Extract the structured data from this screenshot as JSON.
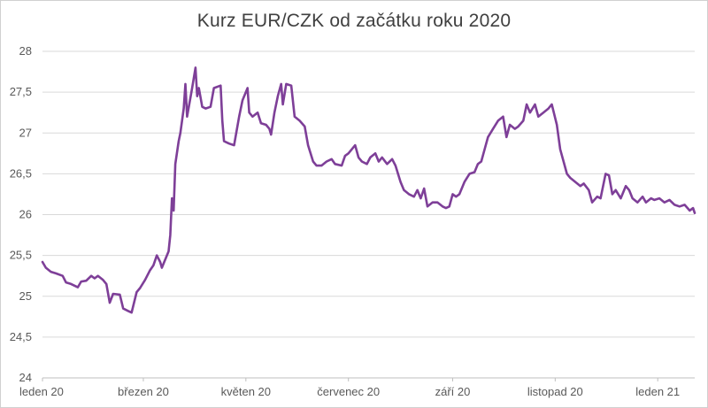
{
  "chart_data": {
    "type": "line",
    "title": "Kurz EUR/CZK od začátku roku 2020",
    "xlabel": "",
    "ylabel": "",
    "ylim": [
      24,
      28
    ],
    "yticks": [
      "24",
      "24,5",
      "25",
      "25,5",
      "26",
      "26,5",
      "27",
      "27,5",
      "28"
    ],
    "xticks": [
      {
        "label": "leden 20",
        "date": "2020-01-01"
      },
      {
        "label": "březen 20",
        "date": "2020-03-01"
      },
      {
        "label": "květen 20",
        "date": "2020-05-01"
      },
      {
        "label": "červenec 20",
        "date": "2020-07-01"
      },
      {
        "label": "září 20",
        "date": "2020-09-01"
      },
      {
        "label": "listopad 20",
        "date": "2020-11-01"
      },
      {
        "label": "leden 21",
        "date": "2021-01-01"
      }
    ],
    "x_range": [
      "2020-01-01",
      "2021-01-23"
    ],
    "grid": "horizontal",
    "line_color": "#7e3f98",
    "series": [
      {
        "points": [
          [
            "2020-01-01",
            25.42
          ],
          [
            "2020-01-03",
            25.35
          ],
          [
            "2020-01-06",
            25.3
          ],
          [
            "2020-01-09",
            25.28
          ],
          [
            "2020-01-13",
            25.25
          ],
          [
            "2020-01-15",
            25.17
          ],
          [
            "2020-01-18",
            25.15
          ],
          [
            "2020-01-22",
            25.11
          ],
          [
            "2020-01-24",
            25.18
          ],
          [
            "2020-01-27",
            25.19
          ],
          [
            "2020-01-30",
            25.25
          ],
          [
            "2020-02-01",
            25.22
          ],
          [
            "2020-02-03",
            25.25
          ],
          [
            "2020-02-06",
            25.2
          ],
          [
            "2020-02-08",
            25.15
          ],
          [
            "2020-02-10",
            24.92
          ],
          [
            "2020-02-12",
            25.03
          ],
          [
            "2020-02-16",
            25.02
          ],
          [
            "2020-02-18",
            24.85
          ],
          [
            "2020-02-21",
            24.82
          ],
          [
            "2020-02-23",
            24.8
          ],
          [
            "2020-02-26",
            25.05
          ],
          [
            "2020-02-28",
            25.1
          ],
          [
            "2020-03-02",
            25.2
          ],
          [
            "2020-03-05",
            25.32
          ],
          [
            "2020-03-07",
            25.38
          ],
          [
            "2020-03-09",
            25.5
          ],
          [
            "2020-03-11",
            25.42
          ],
          [
            "2020-03-12",
            25.35
          ],
          [
            "2020-03-14",
            25.45
          ],
          [
            "2020-03-16",
            25.55
          ],
          [
            "2020-03-17",
            25.75
          ],
          [
            "2020-03-18",
            26.2
          ],
          [
            "2020-03-19",
            26.05
          ],
          [
            "2020-03-20",
            26.62
          ],
          [
            "2020-03-22",
            26.9
          ],
          [
            "2020-03-23",
            27.0
          ],
          [
            "2020-03-25",
            27.3
          ],
          [
            "2020-03-26",
            27.6
          ],
          [
            "2020-03-27",
            27.2
          ],
          [
            "2020-03-30",
            27.55
          ],
          [
            "2020-04-01",
            27.8
          ],
          [
            "2020-04-02",
            27.45
          ],
          [
            "2020-04-03",
            27.55
          ],
          [
            "2020-04-05",
            27.32
          ],
          [
            "2020-04-07",
            27.3
          ],
          [
            "2020-04-10",
            27.32
          ],
          [
            "2020-04-12",
            27.55
          ],
          [
            "2020-04-16",
            27.58
          ],
          [
            "2020-04-17",
            27.15
          ],
          [
            "2020-04-18",
            26.9
          ],
          [
            "2020-04-21",
            26.87
          ],
          [
            "2020-04-24",
            26.85
          ],
          [
            "2020-04-27",
            27.2
          ],
          [
            "2020-04-29",
            27.4
          ],
          [
            "2020-05-02",
            27.55
          ],
          [
            "2020-05-03",
            27.25
          ],
          [
            "2020-05-05",
            27.2
          ],
          [
            "2020-05-08",
            27.25
          ],
          [
            "2020-05-10",
            27.12
          ],
          [
            "2020-05-13",
            27.1
          ],
          [
            "2020-05-15",
            27.05
          ],
          [
            "2020-05-16",
            26.98
          ],
          [
            "2020-05-18",
            27.25
          ],
          [
            "2020-05-20",
            27.45
          ],
          [
            "2020-05-22",
            27.6
          ],
          [
            "2020-05-23",
            27.35
          ],
          [
            "2020-05-25",
            27.6
          ],
          [
            "2020-05-28",
            27.58
          ],
          [
            "2020-05-30",
            27.2
          ],
          [
            "2020-06-02",
            27.15
          ],
          [
            "2020-06-05",
            27.08
          ],
          [
            "2020-06-07",
            26.85
          ],
          [
            "2020-06-10",
            26.65
          ],
          [
            "2020-06-12",
            26.6
          ],
          [
            "2020-06-15",
            26.6
          ],
          [
            "2020-06-18",
            26.65
          ],
          [
            "2020-06-21",
            26.68
          ],
          [
            "2020-06-23",
            26.62
          ],
          [
            "2020-06-27",
            26.6
          ],
          [
            "2020-06-29",
            26.72
          ],
          [
            "2020-07-01",
            26.75
          ],
          [
            "2020-07-03",
            26.8
          ],
          [
            "2020-07-05",
            26.85
          ],
          [
            "2020-07-07",
            26.7
          ],
          [
            "2020-07-09",
            26.65
          ],
          [
            "2020-07-12",
            26.62
          ],
          [
            "2020-07-14",
            26.7
          ],
          [
            "2020-07-17",
            26.75
          ],
          [
            "2020-07-19",
            26.65
          ],
          [
            "2020-07-21",
            26.7
          ],
          [
            "2020-07-24",
            26.62
          ],
          [
            "2020-07-27",
            26.68
          ],
          [
            "2020-07-29",
            26.6
          ],
          [
            "2020-08-01",
            26.4
          ],
          [
            "2020-08-03",
            26.3
          ],
          [
            "2020-08-06",
            26.25
          ],
          [
            "2020-08-09",
            26.22
          ],
          [
            "2020-08-11",
            26.3
          ],
          [
            "2020-08-13",
            26.2
          ],
          [
            "2020-08-15",
            26.32
          ],
          [
            "2020-08-17",
            26.1
          ],
          [
            "2020-08-20",
            26.15
          ],
          [
            "2020-08-23",
            26.15
          ],
          [
            "2020-08-26",
            26.1
          ],
          [
            "2020-08-28",
            26.08
          ],
          [
            "2020-08-30",
            26.1
          ],
          [
            "2020-09-01",
            26.25
          ],
          [
            "2020-09-03",
            26.22
          ],
          [
            "2020-09-05",
            26.25
          ],
          [
            "2020-09-08",
            26.4
          ],
          [
            "2020-09-11",
            26.5
          ],
          [
            "2020-09-14",
            26.52
          ],
          [
            "2020-09-16",
            26.62
          ],
          [
            "2020-09-18",
            26.65
          ],
          [
            "2020-09-20",
            26.8
          ],
          [
            "2020-09-22",
            26.95
          ],
          [
            "2020-09-25",
            27.05
          ],
          [
            "2020-09-28",
            27.15
          ],
          [
            "2020-10-01",
            27.2
          ],
          [
            "2020-10-03",
            26.95
          ],
          [
            "2020-10-05",
            27.1
          ],
          [
            "2020-10-08",
            27.05
          ],
          [
            "2020-10-10",
            27.08
          ],
          [
            "2020-10-13",
            27.15
          ],
          [
            "2020-10-15",
            27.35
          ],
          [
            "2020-10-17",
            27.25
          ],
          [
            "2020-10-20",
            27.35
          ],
          [
            "2020-10-22",
            27.2
          ],
          [
            "2020-10-25",
            27.25
          ],
          [
            "2020-10-28",
            27.3
          ],
          [
            "2020-10-30",
            27.35
          ],
          [
            "2020-11-02",
            27.1
          ],
          [
            "2020-11-04",
            26.8
          ],
          [
            "2020-11-06",
            26.65
          ],
          [
            "2020-11-08",
            26.5
          ],
          [
            "2020-11-10",
            26.45
          ],
          [
            "2020-11-13",
            26.4
          ],
          [
            "2020-11-16",
            26.35
          ],
          [
            "2020-11-18",
            26.38
          ],
          [
            "2020-11-21",
            26.3
          ],
          [
            "2020-11-23",
            26.15
          ],
          [
            "2020-11-26",
            26.22
          ],
          [
            "2020-11-28",
            26.2
          ],
          [
            "2020-12-01",
            26.5
          ],
          [
            "2020-12-03",
            26.48
          ],
          [
            "2020-12-05",
            26.25
          ],
          [
            "2020-12-07",
            26.3
          ],
          [
            "2020-12-10",
            26.2
          ],
          [
            "2020-12-13",
            26.35
          ],
          [
            "2020-12-15",
            26.3
          ],
          [
            "2020-12-17",
            26.2
          ],
          [
            "2020-12-20",
            26.15
          ],
          [
            "2020-12-23",
            26.22
          ],
          [
            "2020-12-25",
            26.15
          ],
          [
            "2020-12-28",
            26.2
          ],
          [
            "2020-12-30",
            26.18
          ],
          [
            "2021-01-02",
            26.2
          ],
          [
            "2021-01-05",
            26.15
          ],
          [
            "2021-01-08",
            26.18
          ],
          [
            "2021-01-11",
            26.12
          ],
          [
            "2021-01-14",
            26.1
          ],
          [
            "2021-01-17",
            26.12
          ],
          [
            "2021-01-20",
            26.05
          ],
          [
            "2021-01-22",
            26.08
          ],
          [
            "2021-01-23",
            26.02
          ]
        ]
      }
    ]
  }
}
